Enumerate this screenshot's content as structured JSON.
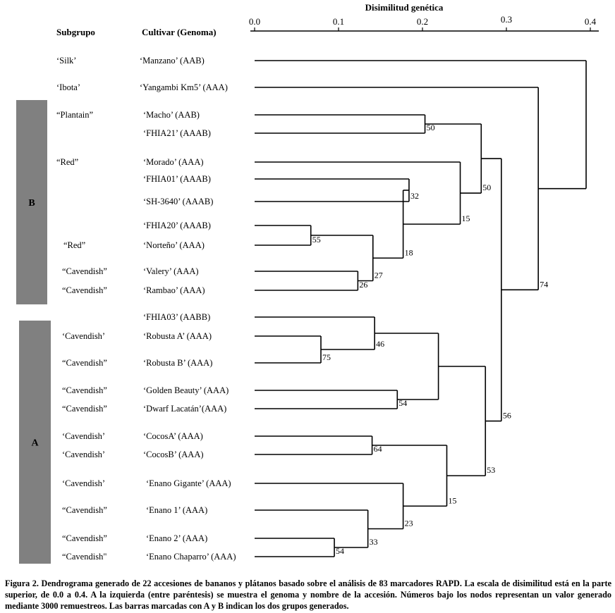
{
  "chart_data": {
    "type": "dendrogram",
    "title": "Disimilitud genética",
    "axis": {
      "min": 0.0,
      "max": 0.4,
      "ticks": [
        0.0,
        0.1,
        0.2,
        0.3,
        0.4
      ],
      "tick_labels": [
        "0.0",
        "0.1",
        "0.2",
        "0.3",
        "0.4"
      ],
      "orientation": "top"
    },
    "column_headers": {
      "subgroup": "Subgrupo",
      "cultivar": "Cultivar (Genoma)"
    },
    "leaves": [
      {
        "id": "L1",
        "subgroup": "‘Silk’",
        "cultivar": "‘Manzano’ (AAB)"
      },
      {
        "id": "L2",
        "subgroup": "‘Ibota’",
        "cultivar": "‘Yangambi Km5’ (AAA)"
      },
      {
        "id": "L3",
        "subgroup": "“Plantain”",
        "cultivar": "‘Macho’ (AAB)"
      },
      {
        "id": "L4",
        "subgroup": "",
        "cultivar": "‘FHIA21’ (AAAB)"
      },
      {
        "id": "L5",
        "subgroup": "“Red”",
        "cultivar": "‘Morado’ (AAA)"
      },
      {
        "id": "L6",
        "subgroup": "",
        "cultivar": "‘FHIA01’ (AAAB)"
      },
      {
        "id": "L7",
        "subgroup": "",
        "cultivar": "‘SH-3640’ (AAAB)"
      },
      {
        "id": "L8",
        "subgroup": "",
        "cultivar": "‘FHIA20’ (AAAB)"
      },
      {
        "id": "L9",
        "subgroup": "“Red”",
        "cultivar": "‘Norteño’ (AAA)"
      },
      {
        "id": "L10",
        "subgroup": "“Cavendish”",
        "cultivar": "‘Valery’ (AAA)"
      },
      {
        "id": "L11",
        "subgroup": "“Cavendish”",
        "cultivar": "‘Rambao’ (AAA)"
      },
      {
        "id": "L12",
        "subgroup": "",
        "cultivar": "‘FHIA03’ (AABB)"
      },
      {
        "id": "L13",
        "subgroup": "‘Cavendish’",
        "cultivar": "‘Robusta A’ (AAA)"
      },
      {
        "id": "L14",
        "subgroup": "“Cavendish”",
        "cultivar": "‘Robusta B’ (AAA)"
      },
      {
        "id": "L15",
        "subgroup": "“Cavendish”",
        "cultivar": "‘Golden Beauty’ (AAA)"
      },
      {
        "id": "L16",
        "subgroup": "“Cavendish”",
        "cultivar": "‘Dwarf Lacatán’(AAA)"
      },
      {
        "id": "L17",
        "subgroup": "‘Cavendish’",
        "cultivar": "‘CocosA’ (AAA)"
      },
      {
        "id": "L18",
        "subgroup": "‘Cavendish’",
        "cultivar": "‘CocosB’ (AAA)"
      },
      {
        "id": "L19",
        "subgroup": "‘Cavendish’",
        "cultivar": "‘Enano Gigante’ (AAA)"
      },
      {
        "id": "L20",
        "subgroup": "“Cavendish”",
        "cultivar": "‘Enano 1’ (AAA)"
      },
      {
        "id": "L21",
        "subgroup": "“Cavendish”",
        "cultivar": "‘Enano 2’ (AAA)"
      },
      {
        "id": "L22",
        "subgroup": "“Cavendish\"",
        "cultivar": "‘Enano Chaparro’ (AAA)"
      }
    ],
    "nodes": [
      {
        "id": "N1",
        "children": [
          "L3",
          "L4"
        ],
        "height": 0.203,
        "bootstrap": "50"
      },
      {
        "id": "N2",
        "children": [
          "L6",
          "L7"
        ],
        "height": 0.184,
        "bootstrap": "32"
      },
      {
        "id": "N3",
        "children": [
          "L8",
          "L9"
        ],
        "height": 0.067,
        "bootstrap": "55"
      },
      {
        "id": "N4",
        "children": [
          "L10",
          "L11"
        ],
        "height": 0.123,
        "bootstrap": "26"
      },
      {
        "id": "N5",
        "children": [
          "N3",
          "N4"
        ],
        "height": 0.141,
        "bootstrap": "27"
      },
      {
        "id": "N6",
        "children": [
          "N2",
          "N5"
        ],
        "height": 0.177,
        "bootstrap": "18"
      },
      {
        "id": "N7",
        "children": [
          "L5",
          "N6"
        ],
        "height": 0.245,
        "bootstrap": "15"
      },
      {
        "id": "N8",
        "children": [
          "N1",
          "N7"
        ],
        "height": 0.27,
        "bootstrap": "50"
      },
      {
        "id": "N9",
        "children": [
          "L13",
          "L14"
        ],
        "height": 0.079,
        "bootstrap": "75"
      },
      {
        "id": "N10",
        "children": [
          "L12",
          "N9"
        ],
        "height": 0.143,
        "bootstrap": "46"
      },
      {
        "id": "N11",
        "children": [
          "L15",
          "L16"
        ],
        "height": 0.17,
        "bootstrap": "54"
      },
      {
        "id": "N12",
        "children": [
          "N10",
          "N11"
        ],
        "height": 0.219,
        "bootstrap": ""
      },
      {
        "id": "N13",
        "children": [
          "L17",
          "L18"
        ],
        "height": 0.14,
        "bootstrap": "64"
      },
      {
        "id": "N14",
        "children": [
          "L21",
          "L22"
        ],
        "height": 0.095,
        "bootstrap": "54"
      },
      {
        "id": "N15",
        "children": [
          "L20",
          "N14"
        ],
        "height": 0.135,
        "bootstrap": "33"
      },
      {
        "id": "N16",
        "children": [
          "L19",
          "N15"
        ],
        "height": 0.177,
        "bootstrap": "23"
      },
      {
        "id": "N17",
        "children": [
          "N13",
          "N16"
        ],
        "height": 0.229,
        "bootstrap": "15"
      },
      {
        "id": "N18",
        "children": [
          "N12",
          "N17"
        ],
        "height": 0.275,
        "bootstrap": "53"
      },
      {
        "id": "N19",
        "children": [
          "N8",
          "N18"
        ],
        "height": 0.294,
        "bootstrap": "56"
      },
      {
        "id": "N20",
        "children": [
          "L2",
          "N19"
        ],
        "height": 0.338,
        "bootstrap": "74"
      },
      {
        "id": "N21",
        "children": [
          "L1",
          "N20"
        ],
        "height": 0.395,
        "bootstrap": ""
      }
    ],
    "groups": [
      {
        "label": "B",
        "from_leaf": "L3",
        "to_leaf": "L11"
      },
      {
        "label": "A",
        "from_leaf": "L12",
        "to_leaf": "L22"
      }
    ]
  },
  "caption": {
    "label": "Figura 2.",
    "text": "Dendrograma generado de 22 accesiones de bananos y plátanos basado sobre el análisis de 83 marcadores RAPD. La escala de disimilitud está en la parte superior, de 0.0 a 0.4. A la izquierda (entre paréntesis) se muestra el genoma y nombre de la accesión. Números bajo los nodos representan un valor generado mediante 3000 remuestreos. Las barras marcadas con A y B indican los dos grupos generados."
  }
}
